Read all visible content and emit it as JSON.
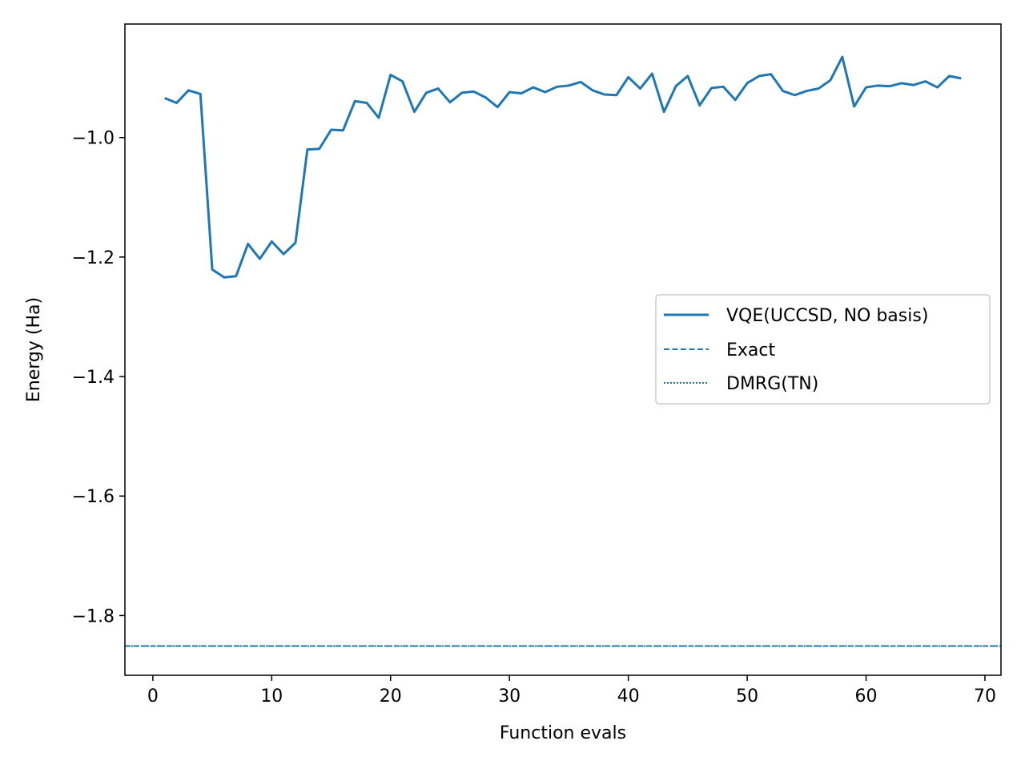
{
  "chart_data": {
    "type": "line",
    "title": "",
    "xlabel": "Function evals",
    "ylabel": "Energy (Ha)",
    "xlim": [
      -2.35,
      71.35
    ],
    "ylim": [
      -1.9,
      -0.81
    ],
    "xticks": [
      0,
      10,
      20,
      30,
      40,
      50,
      60,
      70
    ],
    "yticks": [
      -1.8,
      -1.6,
      -1.4,
      -1.2,
      -1.0
    ],
    "ytick_labels": [
      "−1.8",
      "−1.6",
      "−1.4",
      "−1.2",
      "−1.0"
    ],
    "grid": false,
    "legend": {
      "position": "center-right"
    },
    "series": [
      {
        "name": "VQE(UCCSD, NO basis)",
        "style": "solid",
        "color": "#1f77b4",
        "x": [
          1,
          2,
          3,
          4,
          5,
          6,
          7,
          8,
          9,
          10,
          11,
          12,
          13,
          14,
          15,
          16,
          17,
          18,
          19,
          20,
          21,
          22,
          23,
          24,
          25,
          26,
          27,
          28,
          29,
          30,
          31,
          32,
          33,
          34,
          35,
          36,
          37,
          38,
          39,
          40,
          41,
          42,
          43,
          44,
          45,
          46,
          47,
          48,
          49,
          50,
          51,
          52,
          53,
          54,
          55,
          56,
          57,
          58,
          59,
          60,
          61,
          62,
          63,
          64,
          65,
          66,
          67,
          68
        ],
        "y": [
          -0.934,
          -0.942,
          -0.921,
          -0.927,
          -1.221,
          -1.234,
          -1.232,
          -1.178,
          -1.203,
          -1.174,
          -1.195,
          -1.176,
          -1.02,
          -1.019,
          -0.987,
          -0.988,
          -0.939,
          -0.942,
          -0.967,
          -0.895,
          -0.906,
          -0.957,
          -0.925,
          -0.918,
          -0.941,
          -0.925,
          -0.923,
          -0.933,
          -0.949,
          -0.924,
          -0.926,
          -0.916,
          -0.924,
          -0.915,
          -0.913,
          -0.907,
          -0.921,
          -0.928,
          -0.929,
          -0.899,
          -0.918,
          -0.893,
          -0.957,
          -0.914,
          -0.897,
          -0.946,
          -0.917,
          -0.915,
          -0.937,
          -0.909,
          -0.897,
          -0.894,
          -0.922,
          -0.929,
          -0.922,
          -0.918,
          -0.904,
          -0.865,
          -0.948,
          -0.916,
          -0.913,
          -0.914,
          -0.909,
          -0.912,
          -0.906,
          -0.916,
          -0.897,
          -0.901
        ]
      },
      {
        "name": "Exact",
        "style": "dashed",
        "color": "#1f77b4",
        "y_const": -1.851
      },
      {
        "name": "DMRG(TN)",
        "style": "dotted",
        "color": "#1f77b4",
        "y_const": -1.851
      }
    ]
  }
}
